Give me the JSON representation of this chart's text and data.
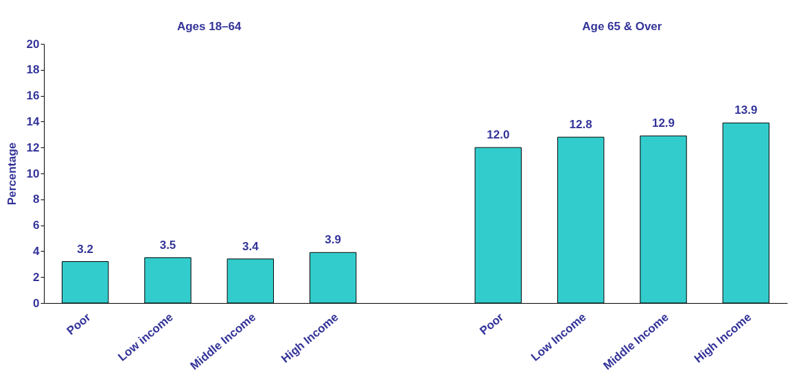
{
  "chart_data": {
    "type": "bar",
    "ylabel": "Percentage",
    "categories": [
      "Poor",
      "Low income",
      "Middle Income",
      "High Income",
      null,
      "Poor",
      "Low Income",
      "Middle Income",
      "High Income"
    ],
    "values": [
      3.2,
      3.5,
      3.4,
      3.9,
      null,
      12.0,
      12.8,
      12.9,
      13.9
    ],
    "value_labels": [
      "3.2",
      "3.5",
      "3.4",
      "3.9",
      null,
      "12.0",
      "12.8",
      "12.9",
      "13.9"
    ],
    "color": "#33cccc",
    "ylim": [
      0,
      20
    ],
    "yticks": [
      0,
      2,
      4,
      6,
      8,
      10,
      12,
      14,
      16,
      18,
      20
    ],
    "grid": false,
    "annotations": [
      "Ages 18–64",
      "Age 65 & Over"
    ]
  }
}
